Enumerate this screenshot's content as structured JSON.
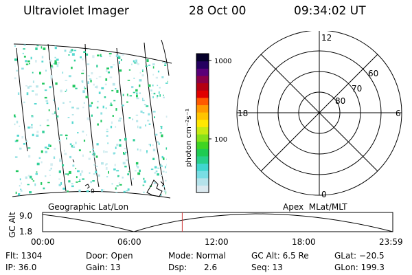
{
  "header": {
    "instrument": "Ultraviolet Imager",
    "date": "28 Oct 00",
    "time": "09:34:02 UT"
  },
  "colorbar": {
    "unit_label": "photon cm⁻²s⁻¹",
    "tick_labels": [
      "1000",
      "100"
    ],
    "colors": [
      "#dbe9ef",
      "#b5e2ea",
      "#79dde4",
      "#40d6cf",
      "#27cf8a",
      "#1ecb52",
      "#3fd422",
      "#86e11a",
      "#c7ea12",
      "#ffe800",
      "#ffc400",
      "#ff9a00",
      "#ff5a00",
      "#e00000",
      "#b40012",
      "#8a0048",
      "#5a0078",
      "#250060",
      "#05002a"
    ]
  },
  "polar_plot": {
    "clock_labels": {
      "top": "12",
      "left": "18",
      "right": "6",
      "bottom": "0"
    },
    "lat_labels": [
      "60",
      "70",
      "80"
    ]
  },
  "map": {
    "zero_label": "0"
  },
  "labels": {
    "left_coords": "Geographic Lat/Lon",
    "right_coords": "Apex  MLat/MLT"
  },
  "altitude_plot": {
    "ylabel": "GC Alt",
    "y_ticks": [
      "9.0",
      "1.8"
    ],
    "x_ticks": [
      "00:00",
      "06:00",
      "12:00",
      "18:00",
      "23:59"
    ],
    "current_time_hours": 9.567,
    "line_color": "#cc3333"
  },
  "info": {
    "flt": "Flt: 1304",
    "ip": "IP: 36.0",
    "door": "Door: Open",
    "gain": "Gain: 13",
    "mode": "Mode: Normal",
    "dsp_label": "Dsp:",
    "dsp_value": "2.6",
    "gc_alt": "GC Alt: 6.5 Re",
    "seq": "Seq: 13",
    "glat": "GLat: −20.5",
    "glon": "GLon: 199.3"
  }
}
